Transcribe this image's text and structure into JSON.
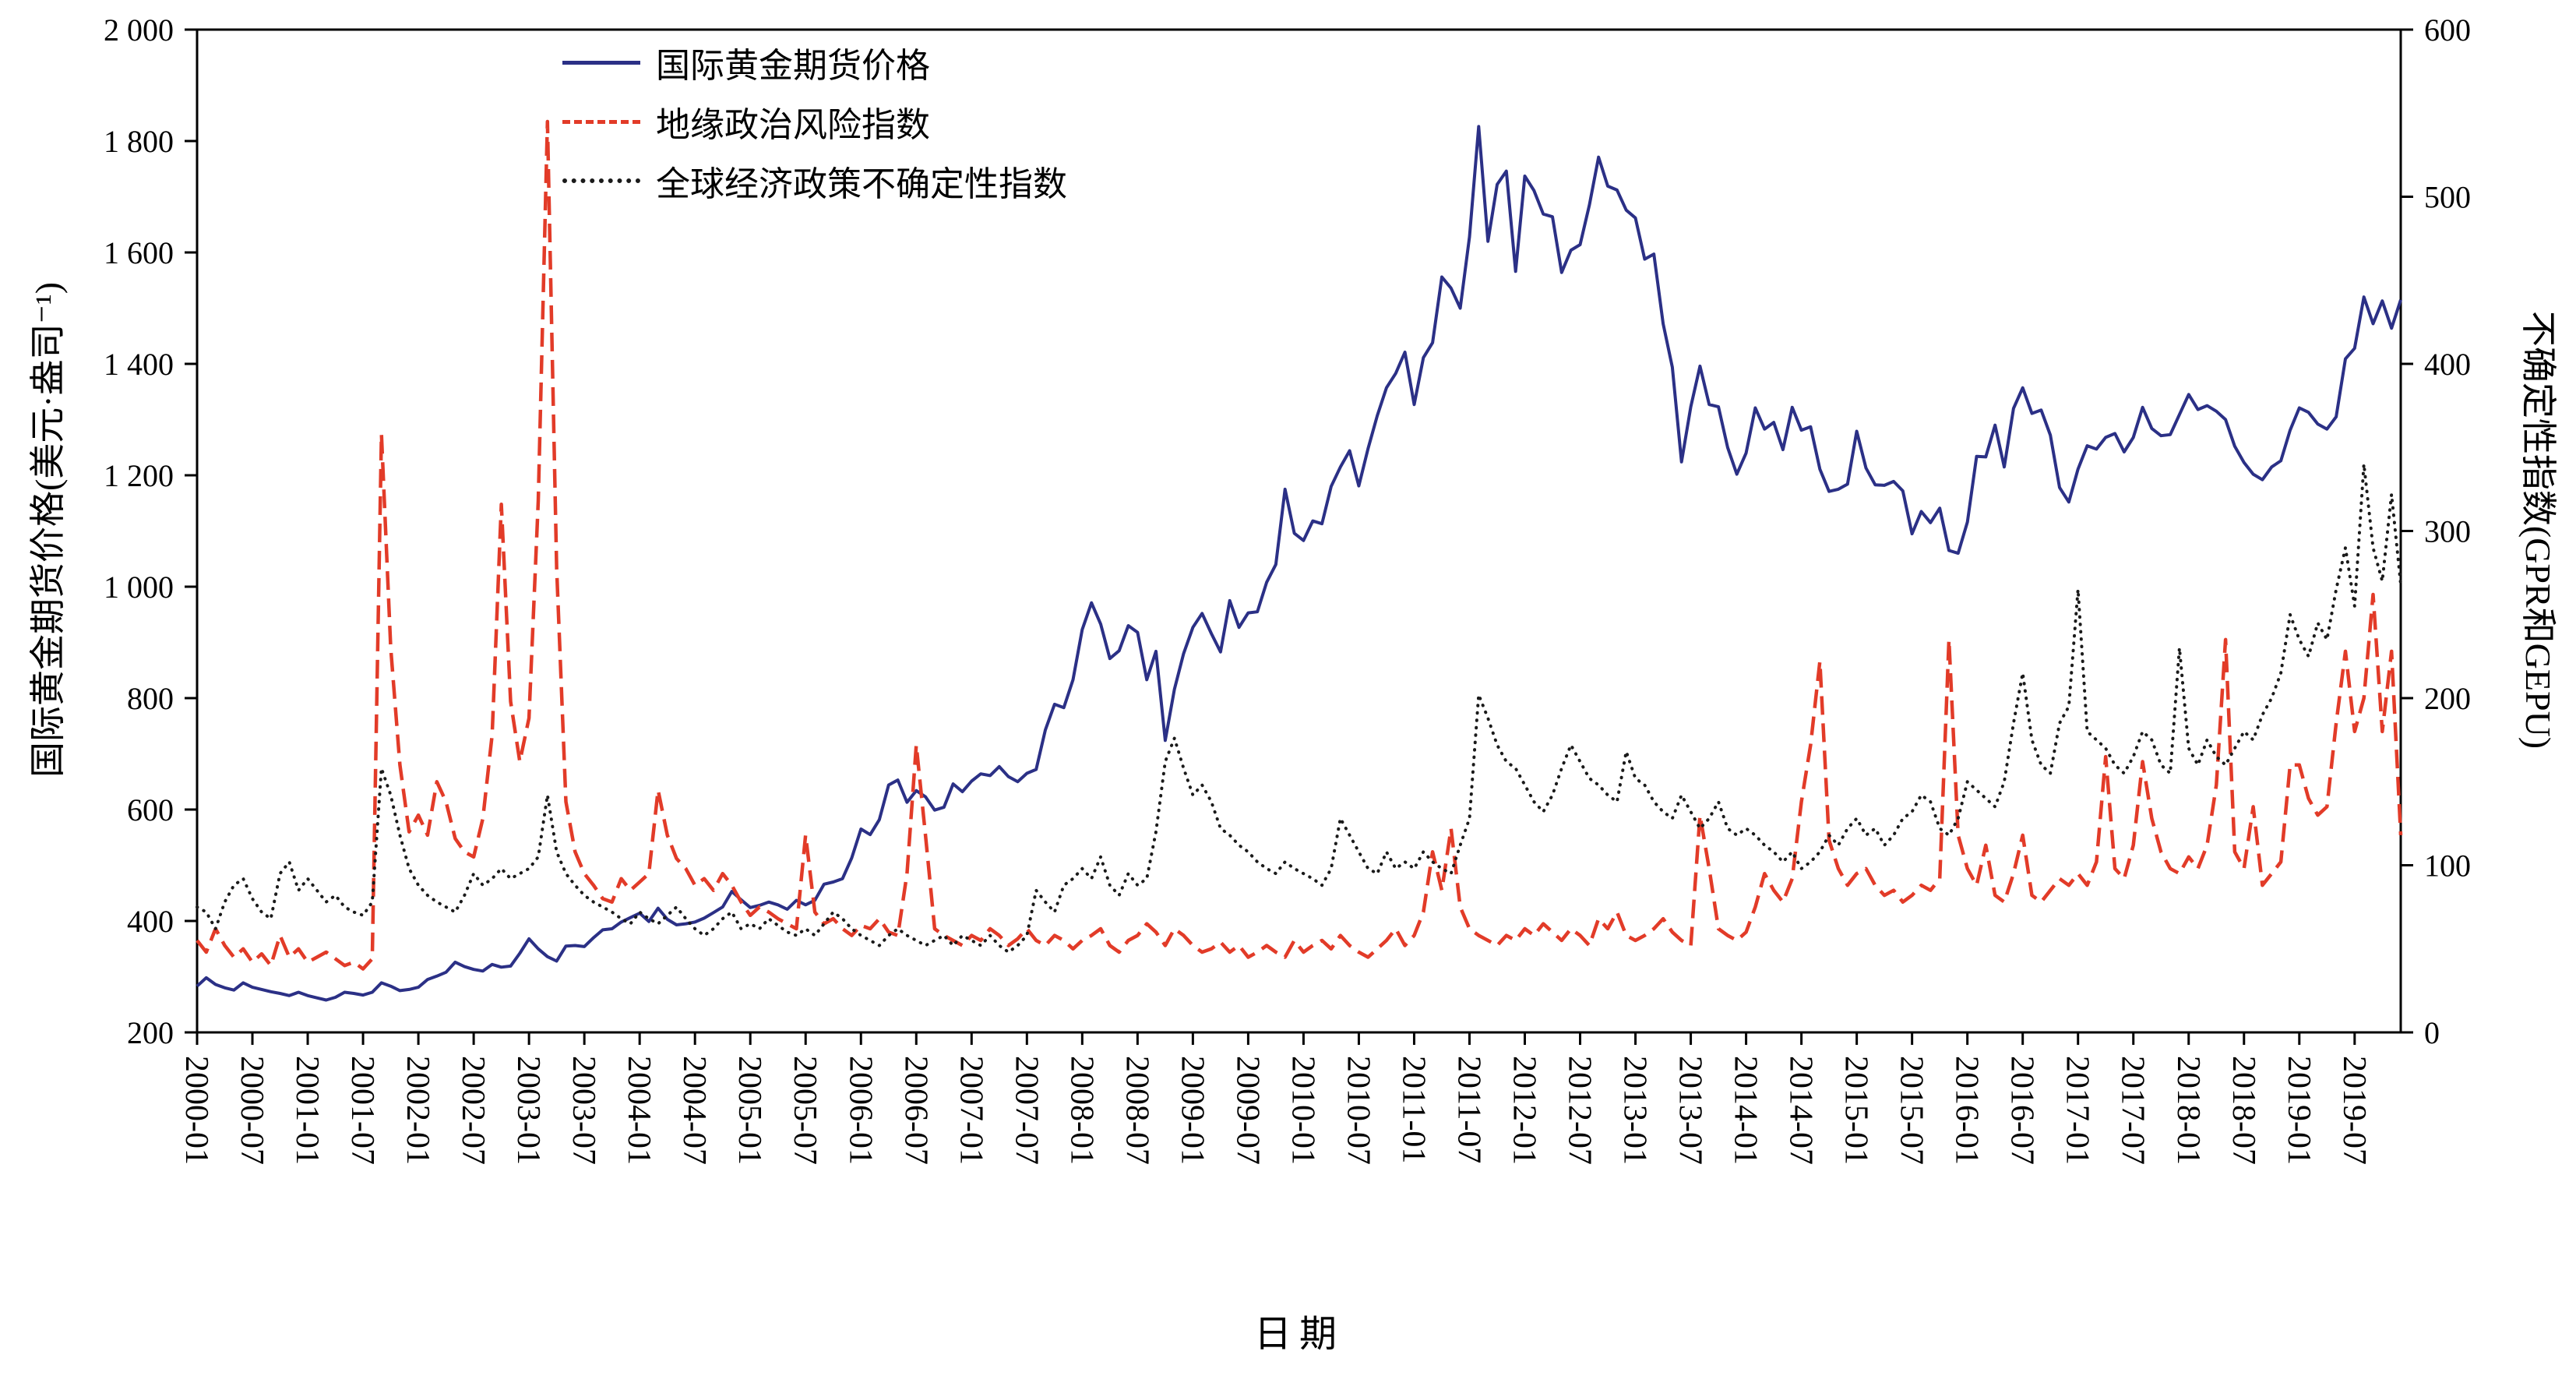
{
  "chart_data": {
    "type": "line",
    "title": "",
    "xlabel": "日期",
    "ylabel_left": "国际黄金期货价格(美元·盎司⁻¹)",
    "ylabel_right": "不确定性指数(GPR和GEPU)",
    "background": "#ffffff",
    "axis_color": "#000000",
    "legend_position": "top-left-inside",
    "x_start": "2000-01",
    "x_end": "2019-12",
    "x_tick_labels": [
      "2000-01",
      "2000-07",
      "2001-01",
      "2001-07",
      "2002-01",
      "2002-07",
      "2003-01",
      "2003-07",
      "2004-01",
      "2004-07",
      "2005-01",
      "2005-07",
      "2006-01",
      "2006-07",
      "2007-01",
      "2007-07",
      "2008-01",
      "2008-07",
      "2009-01",
      "2009-07",
      "2010-01",
      "2010-07",
      "2011-01",
      "2011-07",
      "2012-01",
      "2012-07",
      "2013-01",
      "2013-07",
      "2014-01",
      "2014-07",
      "2015-01",
      "2015-07",
      "2016-01",
      "2016-07",
      "2017-01",
      "2017-07",
      "2018-01",
      "2018-07",
      "2019-01",
      "2019-07"
    ],
    "left_axis": {
      "min": 200,
      "max": 2000,
      "tick_values": [
        200,
        400,
        600,
        800,
        1000,
        1200,
        1400,
        1600,
        1800,
        2000
      ],
      "tick_labels": [
        "200",
        "400",
        "600",
        "800",
        "1 000",
        "1 200",
        "1 400",
        "1 600",
        "1 800",
        "2 000"
      ]
    },
    "right_axis": {
      "min": 0,
      "max": 600,
      "tick_values": [
        0,
        100,
        200,
        300,
        400,
        500,
        600
      ],
      "tick_labels": [
        "0",
        "100",
        "200",
        "300",
        "400",
        "500",
        "600"
      ]
    },
    "series": [
      {
        "name": "国际黄金期货价格",
        "axis": "left",
        "color": "#2b3086",
        "style": "solid",
        "values": [
          283,
          298,
          286,
          280,
          276,
          289,
          281,
          277,
          273,
          270,
          266,
          272,
          266,
          262,
          258,
          263,
          272,
          270,
          267,
          272,
          289,
          283,
          275,
          277,
          281,
          295,
          301,
          308,
          326,
          318,
          313,
          310,
          322,
          317,
          319,
          342,
          368,
          350,
          336,
          328,
          355,
          356,
          354,
          370,
          384,
          386,
          398,
          406,
          414,
          399,
          423,
          403,
          393,
          395,
          398,
          405,
          415,
          425,
          453,
          438,
          424,
          428,
          434,
          429,
          421,
          437,
          429,
          437,
          466,
          470,
          476,
          513,
          565,
          555,
          582,
          644,
          653,
          613,
          634,
          623,
          599,
          604,
          646,
          632,
          651,
          664,
          661,
          677,
          659,
          650,
          665,
          672,
          743,
          789,
          783,
          833,
          923,
          971,
          933,
          871,
          885,
          930,
          918,
          833,
          884,
          724,
          816,
          880,
          927,
          952,
          916,
          883,
          975,
          927,
          953,
          955,
          1008,
          1040,
          1175,
          1096,
          1083,
          1118,
          1113,
          1180,
          1215,
          1244,
          1181,
          1248,
          1307,
          1357,
          1383,
          1421,
          1327,
          1411,
          1438,
          1556,
          1536,
          1500,
          1628,
          1826,
          1620,
          1722,
          1746,
          1566,
          1737,
          1711,
          1669,
          1664,
          1564,
          1604,
          1614,
          1685,
          1771,
          1719,
          1712,
          1676,
          1662,
          1588,
          1597,
          1472,
          1394,
          1224,
          1323,
          1396,
          1327,
          1323,
          1250,
          1202,
          1240,
          1321,
          1283,
          1295,
          1246,
          1322,
          1281,
          1287,
          1211,
          1171,
          1175,
          1184,
          1279,
          1213,
          1183,
          1182,
          1189,
          1172,
          1095,
          1135,
          1115,
          1141,
          1065,
          1060,
          1116,
          1234,
          1233,
          1290,
          1215,
          1320,
          1357,
          1311,
          1317,
          1272,
          1178,
          1152,
          1211,
          1253,
          1247,
          1268,
          1275,
          1242,
          1268,
          1322,
          1284,
          1271,
          1273,
          1309,
          1345,
          1318,
          1325,
          1315,
          1300,
          1252,
          1223,
          1202,
          1192,
          1215,
          1226,
          1281,
          1321,
          1313,
          1292,
          1283,
          1305,
          1409,
          1428,
          1520,
          1472,
          1513,
          1464,
          1515
        ]
      },
      {
        "name": "地缘政治风险指数",
        "axis": "right",
        "color": "#e23b28",
        "style": "dashed",
        "values": [
          55,
          48,
          62,
          52,
          45,
          50,
          42,
          47,
          40,
          58,
          45,
          50,
          42,
          45,
          48,
          44,
          40,
          42,
          38,
          44,
          358,
          230,
          160,
          120,
          130,
          118,
          150,
          138,
          116,
          108,
          105,
          128,
          178,
          316,
          198,
          162,
          188,
          318,
          545,
          278,
          138,
          108,
          95,
          88,
          80,
          78,
          92,
          85,
          90,
          95,
          145,
          118,
          104,
          98,
          88,
          92,
          85,
          95,
          88,
          78,
          70,
          75,
          72,
          68,
          65,
          62,
          118,
          72,
          65,
          68,
          62,
          58,
          64,
          62,
          68,
          60,
          58,
          95,
          172,
          118,
          62,
          58,
          55,
          52,
          58,
          55,
          62,
          58,
          52,
          56,
          62,
          55,
          52,
          58,
          55,
          50,
          55,
          58,
          62,
          52,
          48,
          55,
          58,
          65,
          60,
          52,
          62,
          58,
          52,
          48,
          50,
          54,
          48,
          52,
          45,
          48,
          52,
          48,
          45,
          55,
          48,
          52,
          55,
          50,
          58,
          52,
          48,
          45,
          50,
          55,
          62,
          52,
          58,
          72,
          108,
          85,
          122,
          75,
          62,
          58,
          55,
          52,
          58,
          55,
          62,
          58,
          65,
          60,
          55,
          62,
          58,
          52,
          68,
          62,
          72,
          58,
          55,
          58,
          62,
          68,
          60,
          55,
          52,
          130,
          98,
          62,
          58,
          55,
          60,
          75,
          95,
          85,
          78,
          92,
          138,
          172,
          222,
          115,
          98,
          88,
          95,
          98,
          88,
          82,
          85,
          78,
          82,
          88,
          85,
          92,
          235,
          118,
          98,
          88,
          112,
          82,
          78,
          95,
          118,
          82,
          78,
          85,
          92,
          88,
          95,
          88,
          102,
          165,
          98,
          92,
          112,
          162,
          128,
          108,
          98,
          95,
          105,
          98,
          112,
          148,
          235,
          108,
          98,
          135,
          88,
          95,
          102,
          160,
          160,
          140,
          130,
          135,
          185,
          228,
          180,
          200,
          262,
          180,
          228,
          118
        ]
      },
      {
        "name": "全球经济政策不确定性指数",
        "axis": "right",
        "color": "#1a1a1a",
        "style": "dotted",
        "values": [
          75,
          72,
          62,
          78,
          88,
          92,
          80,
          72,
          68,
          95,
          102,
          85,
          92,
          85,
          78,
          82,
          75,
          72,
          70,
          78,
          158,
          142,
          118,
          98,
          88,
          82,
          78,
          75,
          72,
          82,
          95,
          88,
          92,
          98,
          92,
          95,
          98,
          105,
          142,
          108,
          95,
          88,
          82,
          78,
          75,
          72,
          68,
          65,
          72,
          68,
          65,
          70,
          75,
          68,
          62,
          58,
          62,
          68,
          72,
          62,
          65,
          62,
          68,
          64,
          60,
          58,
          62,
          58,
          65,
          72,
          68,
          62,
          58,
          55,
          52,
          58,
          62,
          58,
          55,
          52,
          55,
          58,
          52,
          58,
          55,
          52,
          58,
          52,
          48,
          52,
          58,
          85,
          78,
          72,
          88,
          92,
          98,
          92,
          105,
          88,
          82,
          95,
          88,
          92,
          120,
          162,
          176,
          158,
          142,
          148,
          138,
          122,
          118,
          112,
          108,
          102,
          98,
          95,
          102,
          98,
          95,
          92,
          88,
          98,
          128,
          118,
          108,
          98,
          95,
          108,
          98,
          102,
          98,
          108,
          102,
          98,
          95,
          112,
          128,
          202,
          188,
          172,
          162,
          158,
          148,
          138,
          132,
          142,
          158,
          172,
          162,
          152,
          148,
          142,
          138,
          168,
          152,
          148,
          138,
          132,
          128,
          142,
          132,
          122,
          128,
          138,
          122,
          118,
          122,
          118,
          112,
          108,
          102,
          108,
          98,
          102,
          108,
          118,
          112,
          122,
          128,
          118,
          122,
          112,
          118,
          128,
          132,
          142,
          138,
          122,
          118,
          128,
          150,
          145,
          140,
          135,
          150,
          185,
          215,
          175,
          160,
          155,
          185,
          195,
          265,
          180,
          175,
          170,
          160,
          155,
          165,
          180,
          175,
          160,
          155,
          230,
          170,
          160,
          175,
          165,
          160,
          170,
          180,
          175,
          190,
          200,
          215,
          250,
          235,
          225,
          245,
          235,
          265,
          290,
          255,
          340,
          290,
          270,
          322,
          268
        ]
      }
    ]
  }
}
